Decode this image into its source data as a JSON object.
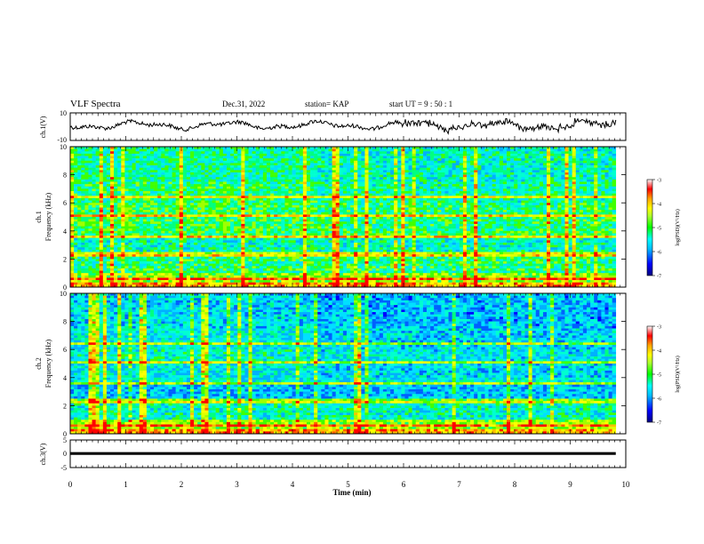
{
  "header": {
    "title": "VLF Spectra",
    "date": "Dec.31, 2022",
    "station": "station= KAP",
    "start": "start  UT =   9  : 50 : 1"
  },
  "chart_data": [
    {
      "type": "line",
      "name": "ch1-waveform",
      "ylabel": "ch.1(V)",
      "ylim": [
        -10,
        10
      ],
      "ytick_labels": [
        "10",
        "-10"
      ],
      "xlim": [
        0,
        10
      ],
      "x_extent": 9.82
    },
    {
      "type": "heatmap",
      "name": "ch1-spectrogram",
      "ylabel": "ch.1\nFrequency (kHz)",
      "ylim": [
        0,
        10
      ],
      "ytick_labels": [
        "0",
        "2",
        "4",
        "6",
        "8",
        "10"
      ],
      "colorbar": {
        "label": "log(PSD)(V²/Hz)",
        "range": [
          -7,
          -3
        ],
        "tick_labels": [
          "-3",
          "-4",
          "-5",
          "-6",
          "-7"
        ]
      }
    },
    {
      "type": "heatmap",
      "name": "ch2-spectrogram",
      "ylabel": "ch.2\nFrequency (kHz)",
      "ylim": [
        0,
        10
      ],
      "ytick_labels": [
        "0",
        "2",
        "4",
        "6",
        "8",
        "10"
      ],
      "colorbar": {
        "label": "log(PSD)(V²/Hz)",
        "range": [
          -7,
          -3
        ],
        "tick_labels": [
          "-3",
          "-4",
          "-5",
          "-6",
          "-7"
        ]
      }
    },
    {
      "type": "line",
      "name": "ch3-waveform",
      "ylabel": "ch.3(V)",
      "ylim": [
        -5,
        5
      ],
      "ytick_labels": [
        "5",
        "0",
        "-5"
      ],
      "xlim": [
        0,
        10
      ],
      "xlabel": "Time (min)",
      "xtick_labels": [
        "0",
        "1",
        "2",
        "3",
        "4",
        "5",
        "6",
        "7",
        "8",
        "9",
        "10"
      ]
    }
  ],
  "colors": {
    "colormap": [
      "#000080",
      "#0000ff",
      "#00bfff",
      "#00ffff",
      "#00ff7f",
      "#00ff00",
      "#adff2f",
      "#ffff00",
      "#ffa500",
      "#ff0000",
      "#ffffff"
    ]
  }
}
